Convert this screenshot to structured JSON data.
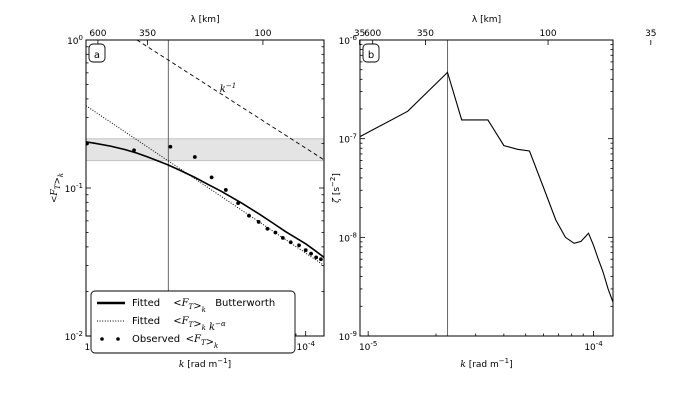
{
  "chart_data": [
    {
      "type": "line",
      "panel_label": "a",
      "xscale": "log",
      "yscale": "log",
      "xlim": [
        9.2e-06,
        0.000122
      ],
      "ylim": [
        0.01,
        1.0
      ],
      "xlabel": "k [rad m⁻¹]",
      "ylabel": "< F_T >_k",
      "top_xlabel": "λ [km]",
      "x_ticks": [
        {
          "value": 1e-05,
          "base": "10",
          "exp": "-5"
        },
        {
          "value": 0.0001,
          "base": "10",
          "exp": "-4"
        }
      ],
      "y_ticks": [
        {
          "value": 0.01,
          "base": "10",
          "exp": "-2"
        },
        {
          "value": 0.1,
          "base": "10",
          "exp": "-1"
        },
        {
          "value": 1.0,
          "base": "10",
          "exp": "0"
        }
      ],
      "top_ticks": [
        {
          "label": "600",
          "km": 600
        },
        {
          "label": "350",
          "km": 350
        },
        {
          "label": "100",
          "km": 100
        },
        {
          "label": "35",
          "km": 35
        }
      ],
      "vline_x": 2.25e-05,
      "shaded_band": {
        "y_low": 0.153,
        "y_high": 0.215
      },
      "k_ref_line": {
        "label": "k",
        "label_exp": "-1",
        "points": [
          [
            1.6e-05,
            1.0
          ],
          [
            0.000122,
            0.155
          ]
        ]
      },
      "series": [
        {
          "name": "Fitted <F_T>_k Butterworth",
          "style": "solid",
          "x": [
            9.2e-06,
            1e-05,
            1.2e-05,
            1.4e-05,
            1.6e-05,
            1.8e-05,
            2e-05,
            2.25e-05,
            2.6e-05,
            3e-05,
            3.5e-05,
            4e-05,
            5e-05,
            6e-05,
            7e-05,
            8e-05,
            9e-05,
            0.0001,
            0.00011,
            0.000122
          ],
          "y": [
            0.205,
            0.201,
            0.192,
            0.182,
            0.172,
            0.162,
            0.153,
            0.143,
            0.13,
            0.118,
            0.105,
            0.095,
            0.079,
            0.067,
            0.058,
            0.051,
            0.046,
            0.042,
            0.038,
            0.034
          ]
        },
        {
          "name": "Fitted <F_T>_k k^-α",
          "style": "dotted",
          "x": [
            9.2e-06,
            0.000122
          ],
          "y": [
            0.36,
            0.03
          ]
        },
        {
          "name": "Observed <F_T>_k",
          "style": "points",
          "x": [
            9.3e-06,
            1.55e-05,
            2.3e-05,
            3e-05,
            3.6e-05,
            4.2e-05,
            4.8e-05,
            5.4e-05,
            6e-05,
            6.6e-05,
            7.2e-05,
            7.8e-05,
            8.5e-05,
            9.3e-05,
            0.0001,
            0.000106,
            0.000112,
            0.000118
          ],
          "y": [
            0.2,
            0.18,
            0.19,
            0.162,
            0.118,
            0.097,
            0.079,
            0.065,
            0.059,
            0.053,
            0.05,
            0.046,
            0.043,
            0.041,
            0.038,
            0.036,
            0.034,
            0.033
          ]
        }
      ],
      "legend": {
        "placement": "lower-left",
        "entries": [
          {
            "style": "solid",
            "text": "Fitted",
            "math": "<F_T>_k",
            "suffix": "Butterworth"
          },
          {
            "style": "dotted",
            "text": "Fitted",
            "math": "<F_T>_k k^-α",
            "suffix": ""
          },
          {
            "style": "points",
            "text": "Observed",
            "math": "<F_T>_k",
            "suffix": ""
          }
        ]
      }
    },
    {
      "type": "line",
      "panel_label": "b",
      "xscale": "log",
      "yscale": "log",
      "xlim": [
        9.2e-06,
        0.000122
      ],
      "ylim": [
        1e-09,
        1e-06
      ],
      "xlabel": "k [rad m⁻¹]",
      "ylabel": "ζ̃ [s⁻²]",
      "top_xlabel": "λ [km]",
      "x_ticks": [
        {
          "value": 1e-05,
          "base": "10",
          "exp": "-5"
        },
        {
          "value": 0.0001,
          "base": "10",
          "exp": "-4"
        }
      ],
      "y_ticks": [
        {
          "value": 1e-09,
          "base": "10",
          "exp": "-9"
        },
        {
          "value": 1e-08,
          "base": "10",
          "exp": "-8"
        },
        {
          "value": 1e-07,
          "base": "10",
          "exp": "-7"
        },
        {
          "value": 1e-06,
          "base": "10",
          "exp": "-6"
        }
      ],
      "top_ticks": [
        {
          "label": "600",
          "km": 600
        },
        {
          "label": "350",
          "km": 350
        },
        {
          "label": "100",
          "km": 100
        },
        {
          "label": "35",
          "km": 35
        }
      ],
      "vline_x": 2.25e-05,
      "series": [
        {
          "style": "solid",
          "x": [
            9.2e-06,
            1.5e-05,
            2.25e-05,
            2.6e-05,
            3.4e-05,
            4e-05,
            4.6e-05,
            5.2e-05,
            6e-05,
            6.8e-05,
            7.5e-05,
            8.2e-05,
            8.8e-05,
            9.5e-05,
            0.0001,
            0.000105,
            0.00011,
            0.000116,
            0.000122
          ],
          "y": [
            1.05e-07,
            1.9e-07,
            4.7e-07,
            1.55e-07,
            1.55e-07,
            8.5e-08,
            7.8e-08,
            7.5e-08,
            3.2e-08,
            1.5e-08,
            1e-08,
            8.7e-09,
            9.1e-09,
            1.1e-08,
            8.3e-09,
            6e-09,
            4.5e-09,
            3e-09,
            2.2e-09
          ]
        }
      ]
    }
  ]
}
